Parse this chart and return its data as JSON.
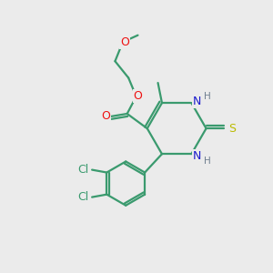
{
  "bg_color": "#ebebeb",
  "atom_colors": {
    "C": "#3a9a6e",
    "N": "#1a1acd",
    "O": "#ee1111",
    "S": "#bbbb00",
    "Cl": "#3a9a6e",
    "H": "#708090"
  },
  "bond_color": "#3a9a6e",
  "figsize": [
    3.0,
    3.0
  ],
  "dpi": 100
}
